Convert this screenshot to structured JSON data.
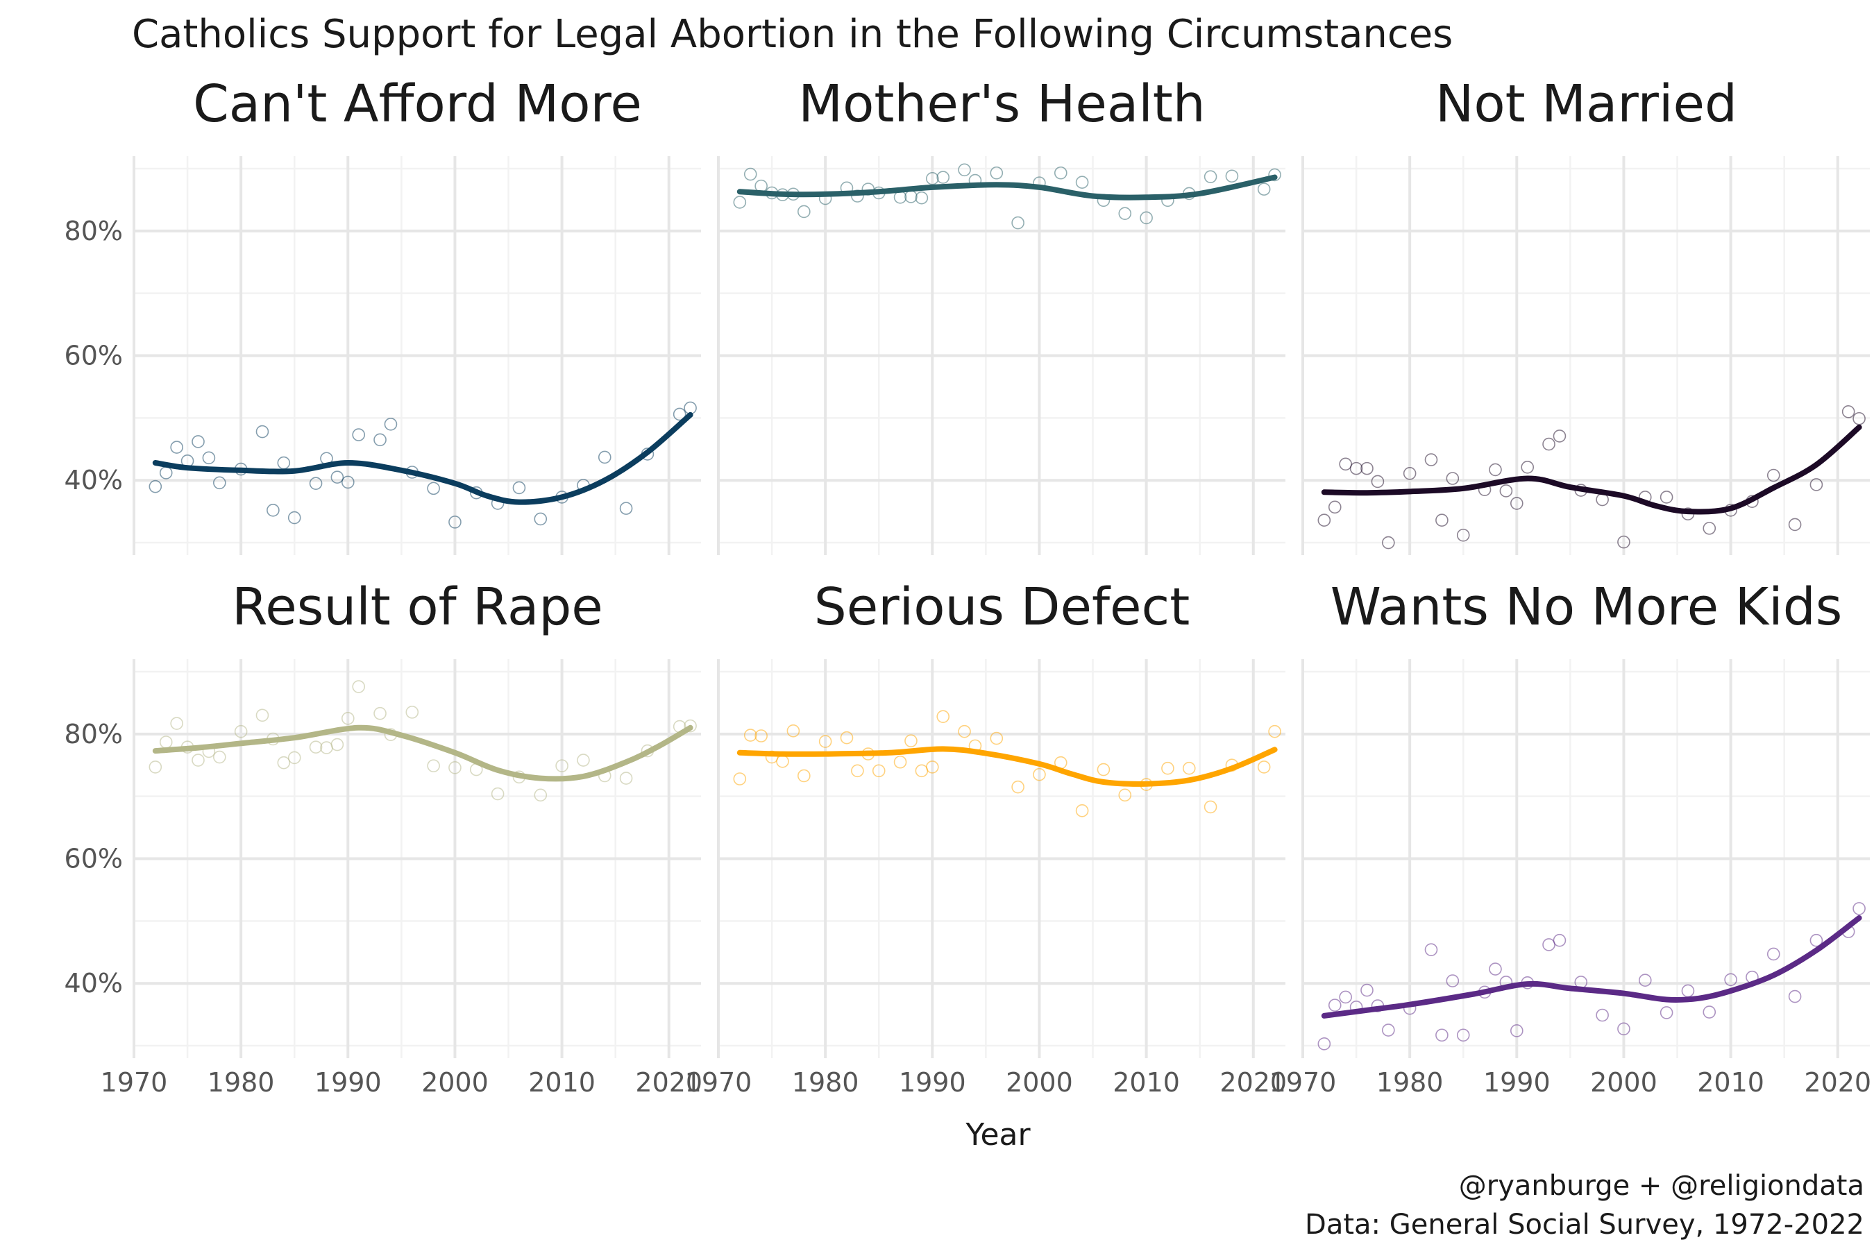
{
  "chart_data": {
    "type": "scatter",
    "title": "Catholics Support for Legal Abortion in the Following Circumstances",
    "xlabel": "Year",
    "ylabel": "",
    "xlim": [
      1970,
      2023
    ],
    "ylim": [
      28,
      92
    ],
    "x_ticks": [
      1970,
      1980,
      1990,
      2000,
      2010,
      2020
    ],
    "y_ticks": [
      40,
      60,
      80
    ],
    "y_tick_labels": [
      "40%",
      "60%",
      "80%"
    ],
    "grid": true,
    "layout": "3x2 facets",
    "caption": [
      "@ryanburge + @religiondata",
      "Data: General Social Survey, 1972-2022"
    ],
    "facets": [
      {
        "name": "Can't Afford More",
        "color": "#0b3d5e",
        "years": [
          1972,
          1973,
          1974,
          1975,
          1976,
          1977,
          1978,
          1980,
          1982,
          1983,
          1984,
          1985,
          1987,
          1988,
          1989,
          1990,
          1991,
          1993,
          1994,
          1996,
          1998,
          2000,
          2002,
          2004,
          2006,
          2008,
          2010,
          2012,
          2014,
          2016,
          2018,
          2021,
          2022
        ],
        "values": [
          39.0,
          41.2,
          45.3,
          43.1,
          46.2,
          43.6,
          39.6,
          41.8,
          47.8,
          35.2,
          42.8,
          34.0,
          39.5,
          43.5,
          40.5,
          39.7,
          47.3,
          46.5,
          49.0,
          41.3,
          38.7,
          33.3,
          38.0,
          36.3,
          38.8,
          33.8,
          37.3,
          39.2,
          43.7,
          35.5,
          44.2,
          50.6,
          51.6
        ],
        "smooth": [
          [
            1972,
            42.8
          ],
          [
            1975,
            42.0
          ],
          [
            1980,
            41.6
          ],
          [
            1985,
            41.5
          ],
          [
            1990,
            42.8
          ],
          [
            1995,
            41.6
          ],
          [
            2000,
            39.5
          ],
          [
            2003,
            37.5
          ],
          [
            2006,
            36.5
          ],
          [
            2010,
            37.3
          ],
          [
            2014,
            40.0
          ],
          [
            2018,
            44.5
          ],
          [
            2022,
            50.5
          ]
        ]
      },
      {
        "name": "Mother's Health",
        "color": "#2a6068",
        "years": [
          1972,
          1973,
          1974,
          1975,
          1976,
          1977,
          1978,
          1980,
          1982,
          1983,
          1984,
          1985,
          1987,
          1988,
          1989,
          1990,
          1991,
          1993,
          1994,
          1996,
          1998,
          2000,
          2002,
          2004,
          2006,
          2008,
          2010,
          2012,
          2014,
          2016,
          2018,
          2021,
          2022
        ],
        "values": [
          84.6,
          89.1,
          87.2,
          86.1,
          85.8,
          85.9,
          83.1,
          85.2,
          86.9,
          85.6,
          86.7,
          86.1,
          85.4,
          85.5,
          85.3,
          88.4,
          88.6,
          89.8,
          88.1,
          89.3,
          81.3,
          87.7,
          89.3,
          87.8,
          84.9,
          82.8,
          82.1,
          84.9,
          86.0,
          88.7,
          88.8,
          86.7,
          89.0
        ],
        "smooth": [
          [
            1972,
            86.3
          ],
          [
            1976,
            85.9
          ],
          [
            1980,
            85.9
          ],
          [
            1985,
            86.3
          ],
          [
            1990,
            87.0
          ],
          [
            1996,
            87.4
          ],
          [
            2000,
            87.0
          ],
          [
            2005,
            85.6
          ],
          [
            2010,
            85.4
          ],
          [
            2015,
            86.0
          ],
          [
            2022,
            88.6
          ]
        ]
      },
      {
        "name": "Not Married",
        "color": "#1c0a26",
        "years": [
          1972,
          1973,
          1974,
          1975,
          1976,
          1977,
          1978,
          1980,
          1982,
          1983,
          1984,
          1985,
          1987,
          1988,
          1989,
          1990,
          1991,
          1993,
          1994,
          1996,
          1998,
          2000,
          2002,
          2004,
          2006,
          2008,
          2010,
          2012,
          2014,
          2016,
          2018,
          2021,
          2022
        ],
        "values": [
          33.6,
          35.7,
          42.6,
          41.9,
          41.9,
          39.8,
          30.0,
          41.1,
          43.3,
          33.6,
          40.3,
          31.2,
          38.5,
          41.7,
          38.3,
          36.3,
          42.1,
          45.8,
          47.1,
          38.4,
          36.9,
          30.1,
          37.3,
          37.3,
          34.6,
          32.3,
          35.2,
          36.6,
          40.8,
          32.9,
          39.3,
          51.0,
          49.9
        ],
        "smooth": [
          [
            1972,
            38.1
          ],
          [
            1976,
            38.0
          ],
          [
            1980,
            38.2
          ],
          [
            1985,
            38.7
          ],
          [
            1991,
            40.3
          ],
          [
            1995,
            38.9
          ],
          [
            2000,
            37.5
          ],
          [
            2003,
            35.9
          ],
          [
            2006,
            35.0
          ],
          [
            2010,
            35.5
          ],
          [
            2014,
            38.8
          ],
          [
            2018,
            42.5
          ],
          [
            2022,
            48.5
          ]
        ]
      },
      {
        "name": "Result of Rape",
        "color": "#b3b687",
        "years": [
          1972,
          1973,
          1974,
          1975,
          1976,
          1977,
          1978,
          1980,
          1982,
          1983,
          1984,
          1985,
          1987,
          1988,
          1989,
          1990,
          1991,
          1993,
          1994,
          1996,
          1998,
          2000,
          2002,
          2004,
          2006,
          2008,
          2010,
          2012,
          2014,
          2016,
          2018,
          2021,
          2022
        ],
        "values": [
          74.7,
          78.7,
          81.7,
          77.9,
          75.8,
          77.2,
          76.3,
          80.4,
          83.0,
          79.2,
          75.4,
          76.2,
          77.9,
          77.8,
          78.3,
          82.5,
          87.6,
          83.3,
          79.9,
          83.5,
          74.9,
          74.6,
          74.3,
          70.4,
          73.1,
          70.2,
          74.9,
          75.8,
          73.3,
          72.9,
          77.3,
          81.2,
          81.3
        ],
        "smooth": [
          [
            1972,
            77.3
          ],
          [
            1976,
            77.8
          ],
          [
            1980,
            78.5
          ],
          [
            1985,
            79.4
          ],
          [
            1991,
            81.0
          ],
          [
            1995,
            79.8
          ],
          [
            2000,
            77.0
          ],
          [
            2004,
            74.2
          ],
          [
            2008,
            72.9
          ],
          [
            2012,
            73.2
          ],
          [
            2016,
            75.5
          ],
          [
            2019,
            78.0
          ],
          [
            2022,
            81.0
          ]
        ]
      },
      {
        "name": "Serious Defect",
        "color": "#ffa500",
        "years": [
          1972,
          1973,
          1974,
          1975,
          1976,
          1977,
          1978,
          1980,
          1982,
          1983,
          1984,
          1985,
          1987,
          1988,
          1989,
          1990,
          1991,
          1993,
          1994,
          1996,
          1998,
          2000,
          2002,
          2004,
          2006,
          2008,
          2010,
          2012,
          2014,
          2016,
          2018,
          2021,
          2022
        ],
        "values": [
          72.8,
          79.8,
          79.7,
          76.3,
          75.6,
          80.5,
          73.3,
          78.8,
          79.4,
          74.1,
          76.8,
          74.1,
          75.5,
          78.9,
          74.1,
          74.7,
          82.8,
          80.4,
          78.1,
          79.3,
          71.5,
          73.5,
          75.4,
          67.7,
          74.3,
          70.2,
          71.9,
          74.5,
          74.5,
          68.3,
          75.0,
          74.7,
          80.4
        ],
        "smooth": [
          [
            1972,
            77.0
          ],
          [
            1976,
            76.8
          ],
          [
            1980,
            76.8
          ],
          [
            1986,
            77.0
          ],
          [
            1991,
            77.6
          ],
          [
            1995,
            76.9
          ],
          [
            2000,
            75.2
          ],
          [
            2003,
            73.6
          ],
          [
            2006,
            72.3
          ],
          [
            2010,
            72.0
          ],
          [
            2014,
            72.6
          ],
          [
            2018,
            74.5
          ],
          [
            2022,
            77.5
          ]
        ]
      },
      {
        "name": "Wants No More Kids",
        "color": "#5b2a86",
        "years": [
          1972,
          1973,
          1974,
          1975,
          1976,
          1977,
          1978,
          1980,
          1982,
          1983,
          1984,
          1985,
          1987,
          1988,
          1989,
          1990,
          1991,
          1993,
          1994,
          1996,
          1998,
          2000,
          2002,
          2004,
          2006,
          2008,
          2010,
          2012,
          2014,
          2016,
          2018,
          2021,
          2022
        ],
        "values": [
          30.3,
          36.5,
          37.8,
          36.2,
          38.9,
          36.4,
          32.5,
          36.0,
          45.4,
          31.7,
          40.4,
          31.7,
          38.6,
          42.3,
          40.2,
          32.4,
          40.1,
          46.2,
          46.9,
          40.2,
          34.9,
          32.7,
          40.5,
          35.3,
          38.8,
          35.4,
          40.6,
          41.0,
          44.7,
          37.9,
          46.9,
          48.3,
          52.0
        ],
        "smooth": [
          [
            1972,
            34.8
          ],
          [
            1976,
            35.7
          ],
          [
            1980,
            36.6
          ],
          [
            1986,
            38.3
          ],
          [
            1991,
            39.9
          ],
          [
            1995,
            39.2
          ],
          [
            2000,
            38.4
          ],
          [
            2004,
            37.4
          ],
          [
            2007,
            37.6
          ],
          [
            2010,
            38.8
          ],
          [
            2014,
            41.3
          ],
          [
            2018,
            45.3
          ],
          [
            2022,
            50.5
          ]
        ]
      }
    ]
  }
}
